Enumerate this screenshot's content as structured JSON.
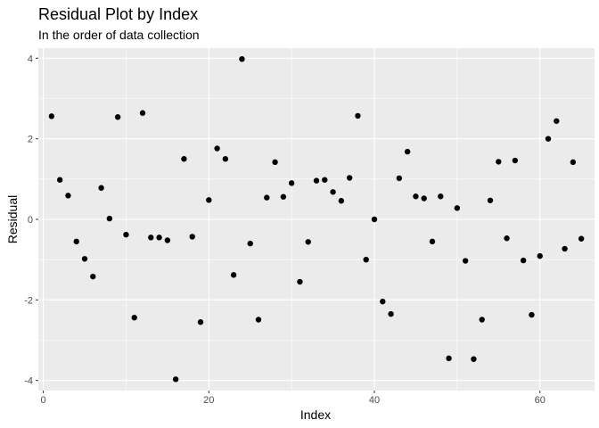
{
  "chart_data": {
    "type": "scatter",
    "title": "Residual Plot by Index",
    "subtitle": "In the order of data collection",
    "xlabel": "Index",
    "ylabel": "Residual",
    "xlim": [
      -0.6,
      66.6
    ],
    "ylim": [
      -4.25,
      4.25
    ],
    "x_ticks": [
      0,
      20,
      40,
      60
    ],
    "x_tick_labels": [
      "0",
      "20",
      "40",
      "60"
    ],
    "y_ticks": [
      -4,
      -2,
      0,
      2,
      4
    ],
    "y_tick_labels": [
      "-4",
      "-2",
      "0",
      "2",
      "4"
    ],
    "grid": true,
    "colors": {
      "panel": "#ebebeb",
      "grid": "#ffffff",
      "point": "#000000",
      "tick_text": "#4d4d4d"
    },
    "points": [
      {
        "x": 1,
        "y": 2.56
      },
      {
        "x": 2,
        "y": 0.98
      },
      {
        "x": 3,
        "y": 0.59
      },
      {
        "x": 4,
        "y": -0.55
      },
      {
        "x": 5,
        "y": -0.98
      },
      {
        "x": 6,
        "y": -1.42
      },
      {
        "x": 7,
        "y": 0.78
      },
      {
        "x": 8,
        "y": 0.02
      },
      {
        "x": 9,
        "y": 2.54
      },
      {
        "x": 10,
        "y": -0.38
      },
      {
        "x": 11,
        "y": -2.44
      },
      {
        "x": 12,
        "y": 2.64
      },
      {
        "x": 13,
        "y": -0.45
      },
      {
        "x": 14,
        "y": -0.45
      },
      {
        "x": 15,
        "y": -0.52
      },
      {
        "x": 16,
        "y": -3.97
      },
      {
        "x": 17,
        "y": 1.5
      },
      {
        "x": 18,
        "y": -0.43
      },
      {
        "x": 19,
        "y": -2.55
      },
      {
        "x": 20,
        "y": 0.48
      },
      {
        "x": 21,
        "y": 1.76
      },
      {
        "x": 22,
        "y": 1.5
      },
      {
        "x": 23,
        "y": -1.38
      },
      {
        "x": 24,
        "y": 3.98
      },
      {
        "x": 25,
        "y": -0.6
      },
      {
        "x": 26,
        "y": -2.49
      },
      {
        "x": 27,
        "y": 0.54
      },
      {
        "x": 28,
        "y": 1.42
      },
      {
        "x": 29,
        "y": 0.56
      },
      {
        "x": 30,
        "y": 0.9
      },
      {
        "x": 31,
        "y": -1.55
      },
      {
        "x": 32,
        "y": -0.56
      },
      {
        "x": 33,
        "y": 0.96
      },
      {
        "x": 34,
        "y": 0.98
      },
      {
        "x": 35,
        "y": 0.68
      },
      {
        "x": 36,
        "y": 0.46
      },
      {
        "x": 37,
        "y": 1.03
      },
      {
        "x": 38,
        "y": 2.57
      },
      {
        "x": 39,
        "y": -1.0
      },
      {
        "x": 40,
        "y": 0.0
      },
      {
        "x": 41,
        "y": -2.04
      },
      {
        "x": 42,
        "y": -2.35
      },
      {
        "x": 43,
        "y": 1.02
      },
      {
        "x": 44,
        "y": 1.68
      },
      {
        "x": 45,
        "y": 0.57
      },
      {
        "x": 46,
        "y": 0.52
      },
      {
        "x": 47,
        "y": -0.55
      },
      {
        "x": 48,
        "y": 0.57
      },
      {
        "x": 49,
        "y": -3.45
      },
      {
        "x": 50,
        "y": 0.28
      },
      {
        "x": 51,
        "y": -1.03
      },
      {
        "x": 52,
        "y": -3.47
      },
      {
        "x": 53,
        "y": -2.49
      },
      {
        "x": 54,
        "y": 0.47
      },
      {
        "x": 55,
        "y": 1.43
      },
      {
        "x": 56,
        "y": -0.47
      },
      {
        "x": 57,
        "y": 1.46
      },
      {
        "x": 58,
        "y": -1.02
      },
      {
        "x": 59,
        "y": -2.37
      },
      {
        "x": 60,
        "y": -0.91
      },
      {
        "x": 61,
        "y": 2.0
      },
      {
        "x": 62,
        "y": 2.44
      },
      {
        "x": 63,
        "y": -0.73
      },
      {
        "x": 64,
        "y": 1.42
      },
      {
        "x": 65,
        "y": -0.48
      }
    ]
  }
}
